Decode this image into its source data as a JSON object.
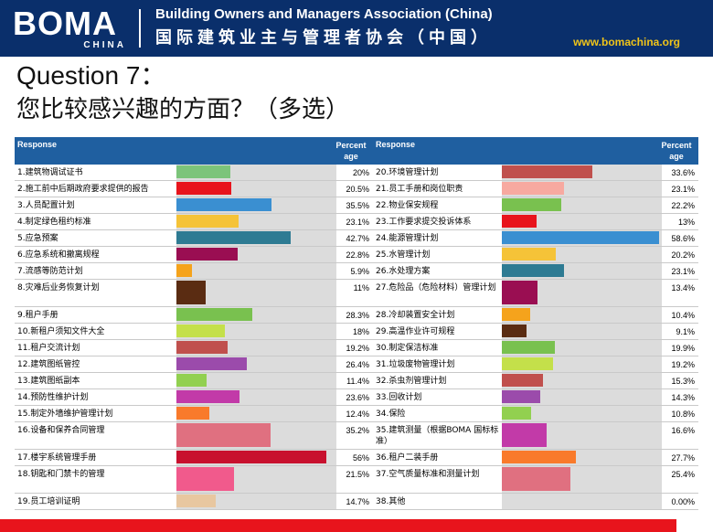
{
  "header": {
    "logo_main": "BOMA",
    "logo_sub": "CHINA",
    "org_en": "Building Owners and Managers Association (China)",
    "org_cn": "国际建筑业主与管理者协会（中国）",
    "website": "www.bomachina.org"
  },
  "question": {
    "title": "Question  7：",
    "subtitle": "您比较感兴趣的方面？（多选）"
  },
  "table": {
    "col_response": "Response",
    "col_percent": "Percent age"
  },
  "chart_data": {
    "type": "bar",
    "orientation": "horizontal",
    "value_unit": "percent",
    "columns": [
      "Response",
      "Percent age"
    ],
    "rows": [
      {
        "label": "1.建筑物调试证书",
        "value": 20,
        "display": "20%",
        "color": "#7cc47a"
      },
      {
        "label": "2.施工前中后期政府要求提供的报告",
        "value": 20.5,
        "display": "20.5%",
        "color": "#e8141c"
      },
      {
        "label": "3.人员配置计划",
        "value": 35.5,
        "display": "35.5%",
        "color": "#3a8fd1"
      },
      {
        "label": "4.制定绿色租约标准",
        "value": 23.1,
        "display": "23.1%",
        "color": "#f5c338"
      },
      {
        "label": "5.应急预案",
        "value": 42.7,
        "display": "42.7%",
        "color": "#2e7b93"
      },
      {
        "label": "6.应急系统和撤离规程",
        "value": 22.8,
        "display": "22.8%",
        "color": "#9a0e52"
      },
      {
        "label": "7.流感等防范计划",
        "value": 5.9,
        "display": "5.9%",
        "color": "#f5a31c"
      },
      {
        "label": "8.灾难后业务恢复计划",
        "value": 11,
        "display": "11%",
        "color": "#5a2c12"
      },
      {
        "label": "9.租户手册",
        "value": 28.3,
        "display": "28.3%",
        "color": "#79c14f"
      },
      {
        "label": "10.新租户须知文件大全",
        "value": 18,
        "display": "18%",
        "color": "#c4e04a"
      },
      {
        "label": "11.租户交流计划",
        "value": 19.2,
        "display": "19.2%",
        "color": "#c0504d"
      },
      {
        "label": "12.建筑图纸管控",
        "value": 26.4,
        "display": "26.4%",
        "color": "#9b4bab"
      },
      {
        "label": "13.建筑图纸副本",
        "value": 11.4,
        "display": "11.4%",
        "color": "#92d050"
      },
      {
        "label": "14.预防性维护计划",
        "value": 23.6,
        "display": "23.6%",
        "color": "#c23aa8"
      },
      {
        "label": "15.制定外墙维护管理计划",
        "value": 12.4,
        "display": "12.4%",
        "color": "#f97a2b"
      },
      {
        "label": "16.设备和保养合同管理",
        "value": 35.2,
        "display": "35.2%",
        "color": "#e07080"
      },
      {
        "label": "17.楼宇系统管理手册",
        "value": 56,
        "display": "56%",
        "color": "#c8102e"
      },
      {
        "label": "18.钥匙和门禁卡的管理",
        "value": 21.5,
        "display": "21.5%",
        "color": "#f15a8c"
      },
      {
        "label": "19.员工培训证明",
        "value": 14.7,
        "display": "14.7%",
        "color": "#e8c7a0"
      },
      {
        "label": "20.环境管理计划",
        "value": 33.6,
        "display": "33.6%",
        "color": "#c0504d"
      },
      {
        "label": "21.员工手册和岗位职责",
        "value": 23.1,
        "display": "23.1%",
        "color": "#f7a9a0"
      },
      {
        "label": "22.物业保安规程",
        "value": 22.2,
        "display": "22.2%",
        "color": "#79c14f"
      },
      {
        "label": "23.工作要求提交投诉体系",
        "value": 13,
        "display": "13%",
        "color": "#e8141c"
      },
      {
        "label": "24.能源管理计划",
        "value": 58.6,
        "display": "58.6%",
        "color": "#3a8fd1"
      },
      {
        "label": "25.水管理计划",
        "value": 20.2,
        "display": "20.2%",
        "color": "#f5c338"
      },
      {
        "label": "26.水处理方案",
        "value": 23.1,
        "display": "23.1%",
        "color": "#2e7b93"
      },
      {
        "label": "27.危险品（危险材料）管理计划",
        "value": 13.4,
        "display": "13.4%",
        "color": "#9a0e52"
      },
      {
        "label": "28.冷却装置安全计划",
        "value": 10.4,
        "display": "10.4%",
        "color": "#f5a31c"
      },
      {
        "label": "29.高温作业许可规程",
        "value": 9.1,
        "display": "9.1%",
        "color": "#5a2c12"
      },
      {
        "label": "30.制定保洁标准",
        "value": 19.9,
        "display": "19.9%",
        "color": "#79c14f"
      },
      {
        "label": "31.垃圾废物管理计划",
        "value": 19.2,
        "display": "19.2%",
        "color": "#c4e04a"
      },
      {
        "label": "32.杀虫剂管理计划",
        "value": 15.3,
        "display": "15.3%",
        "color": "#c0504d"
      },
      {
        "label": "33.回收计划",
        "value": 14.3,
        "display": "14.3%",
        "color": "#9b4bab"
      },
      {
        "label": "34.保险",
        "value": 10.8,
        "display": "10.8%",
        "color": "#92d050"
      },
      {
        "label": "35.建筑测量（根据BOMA 国标标准）",
        "value": 16.6,
        "display": "16.6%",
        "color": "#c23aa8"
      },
      {
        "label": "36.租户二装手册",
        "value": 27.7,
        "display": "27.7%",
        "color": "#f97a2b"
      },
      {
        "label": "37.空气质量标准和测量计划",
        "value": 25.4,
        "display": "25.4%",
        "color": "#e07080"
      },
      {
        "label": "38.其他",
        "value": 0,
        "display": "0.00%",
        "color": "#c8102e"
      }
    ]
  },
  "colors": {
    "header_bg": "#0a2f6b",
    "table_header_bg": "#1f5fa0",
    "footer_bar": "#e8141c",
    "website_text": "#f0c419"
  }
}
